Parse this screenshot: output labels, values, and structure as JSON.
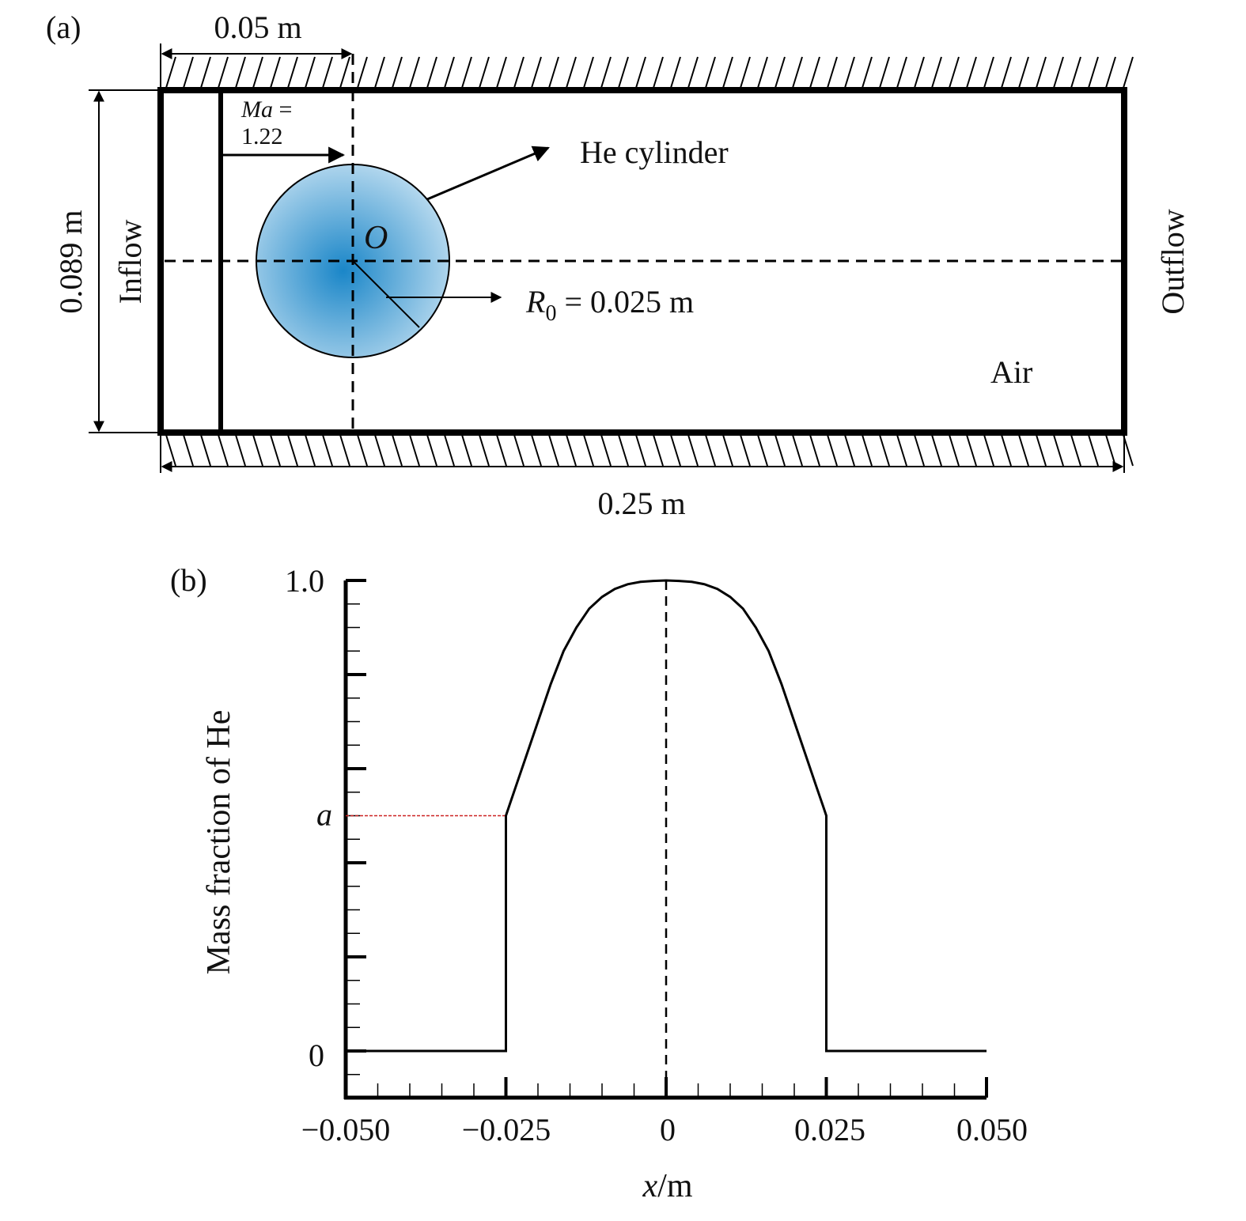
{
  "panel_a": {
    "label": "(a)",
    "dim_top": "0.05 m",
    "dim_left": "0.089 m",
    "dim_bottom": "0.25 m",
    "mach_line1": "Ma =",
    "mach_line2": "1.22",
    "he_label": "He cylinder",
    "origin_label": "O",
    "radius_label_sym": "R",
    "radius_label_sub": "0",
    "radius_label_val": " = 0.025 m",
    "inflow": "Inflow",
    "outflow": "Outflow",
    "air": "Air",
    "colors": {
      "cylinder_center": "#1a86c8",
      "cylinder_edge": "#bcdcf0",
      "frame": "#000000"
    }
  },
  "panel_b": {
    "label": "(b)",
    "ylabel": "Mass fraction of He",
    "xlabel_sym": "x",
    "xlabel_unit": "/m",
    "y_ticks": [
      "0",
      "1.0"
    ],
    "a_label": "a",
    "a_color": "#cc2222",
    "x_ticks": [
      "−0.050",
      "−0.025",
      "0",
      "0.025",
      "0.050"
    ]
  },
  "chart_data": {
    "type": "line",
    "xlabel": "x/m",
    "ylabel": "Mass fraction of He",
    "xlim": [
      -0.05,
      0.05
    ],
    "ylim": [
      -0.1,
      1.0
    ],
    "x_tick_values": [
      -0.05,
      -0.025,
      0,
      0.025,
      0.05
    ],
    "y_tick_values": [
      0,
      1.0
    ],
    "annotation_level_a": 0.5,
    "series": [
      {
        "x": [
          -0.05,
          -0.025,
          -0.025,
          -0.0245,
          -0.0235,
          -0.022,
          -0.02,
          -0.018,
          -0.016,
          -0.014,
          -0.012,
          -0.01,
          -0.008,
          -0.006,
          -0.004,
          -0.002,
          0,
          0.002,
          0.004,
          0.006,
          0.008,
          0.01,
          0.012,
          0.014,
          0.016,
          0.018,
          0.02,
          0.022,
          0.0235,
          0.0245,
          0.025,
          0.025,
          0.05
        ],
        "y": [
          0,
          0,
          0.5,
          0.52,
          0.56,
          0.62,
          0.7,
          0.78,
          0.85,
          0.9,
          0.94,
          0.965,
          0.982,
          0.992,
          0.997,
          0.999,
          1.0,
          0.999,
          0.997,
          0.992,
          0.982,
          0.965,
          0.94,
          0.9,
          0.85,
          0.78,
          0.7,
          0.62,
          0.56,
          0.52,
          0.5,
          0,
          0
        ]
      }
    ]
  }
}
